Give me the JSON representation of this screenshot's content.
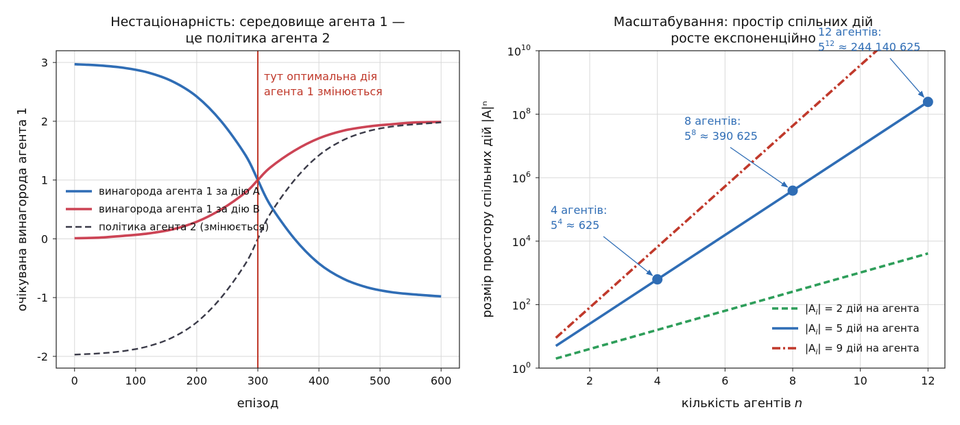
{
  "colors": {
    "blue": "#2f6db5",
    "red": "#cc4455",
    "dark": "#3a3a48",
    "vline": "#c0392b",
    "green": "#2e9e5a",
    "dred": "#c0392b",
    "grid": "#d9d9d9"
  },
  "chart_data": [
    {
      "type": "line",
      "title": [
        "Нестаціонарність: середовище агента 1 —",
        "це політика агента 2"
      ],
      "xlabel": "епізод",
      "ylabel": "очікувана винагорода агента 1",
      "xlim": [
        -30,
        630
      ],
      "ylim": [
        -2.2,
        3.2
      ],
      "xticks": [
        0,
        100,
        200,
        300,
        400,
        500,
        600
      ],
      "xtick_labels": [
        "0",
        "100",
        "200",
        "300",
        "400",
        "500",
        "600"
      ],
      "yticks": [
        -2,
        -1,
        0,
        1,
        2,
        3
      ],
      "ytick_labels": [
        "-2",
        "-1",
        "0",
        "1",
        "2",
        "3"
      ],
      "grid": true,
      "legend_position": "center-left",
      "series": [
        {
          "name": "винагорода агента 1 за дію A",
          "color": "blue",
          "style": "solid",
          "x": [
            0,
            40,
            80,
            120,
            160,
            200,
            240,
            280,
            300,
            320,
            360,
            400,
            440,
            480,
            520,
            560,
            600
          ],
          "y": [
            2.97,
            2.95,
            2.91,
            2.83,
            2.68,
            2.42,
            2.0,
            1.42,
            1.0,
            0.58,
            0.0,
            -0.42,
            -0.68,
            -0.83,
            -0.91,
            -0.95,
            -0.98
          ]
        },
        {
          "name": "винагорода агента 1 за дію B",
          "color": "red",
          "style": "solid",
          "x": [
            0,
            40,
            80,
            120,
            160,
            200,
            240,
            280,
            300,
            320,
            360,
            400,
            440,
            480,
            520,
            560,
            600
          ],
          "y": [
            0.01,
            0.02,
            0.05,
            0.09,
            0.16,
            0.29,
            0.5,
            0.79,
            1.0,
            1.21,
            1.5,
            1.71,
            1.84,
            1.91,
            1.95,
            1.98,
            1.99
          ]
        },
        {
          "name": "політика агента 2 (змінюється)",
          "color": "dark",
          "style": "dashed",
          "x": [
            0,
            40,
            80,
            120,
            160,
            200,
            240,
            280,
            300,
            320,
            360,
            400,
            440,
            480,
            520,
            560,
            600
          ],
          "y": [
            -1.97,
            -1.95,
            -1.91,
            -1.83,
            -1.68,
            -1.42,
            -1.0,
            -0.42,
            0.0,
            0.42,
            1.0,
            1.42,
            1.68,
            1.83,
            1.91,
            1.95,
            1.98
          ]
        }
      ],
      "vline": {
        "x": 300,
        "color": "vline"
      },
      "annotation": {
        "lines": [
          "тут оптимальна дія",
          "агента 1 змінюється"
        ],
        "x": 310,
        "y_top": 2.7,
        "color": "vline"
      }
    },
    {
      "type": "line",
      "title": [
        "Масштабування: простір спільних дій",
        "росте експоненційно"
      ],
      "xlabel": "кількість агентів",
      "xlabel_var": "n",
      "ylabel": "розмір простору спільних дій |A|ⁿ",
      "yscale": "log",
      "xlim": [
        0.5,
        12.5
      ],
      "ylim_exp": [
        0,
        10
      ],
      "xticks": [
        2,
        4,
        6,
        8,
        10,
        12
      ],
      "xtick_labels": [
        "2",
        "4",
        "6",
        "8",
        "10",
        "12"
      ],
      "yticks_exp": [
        0,
        2,
        4,
        6,
        8,
        10
      ],
      "ytick_base": "10",
      "grid": true,
      "legend_position": "bottom-right",
      "series": [
        {
          "name": "|Aᵢ| = 2 дій на агента",
          "name_prefix": "|A",
          "name_sub": "i",
          "name_suffix": "| = 2 дій на агента",
          "color": "green",
          "style": "dashed",
          "base": 2,
          "x": [
            1,
            12
          ]
        },
        {
          "name": "|Aᵢ| = 5 дій на агента",
          "name_prefix": "|A",
          "name_sub": "i",
          "name_suffix": "| = 5 дій на агента",
          "color": "blue",
          "style": "solid",
          "base": 5,
          "x": [
            1,
            12
          ]
        },
        {
          "name": "|Aᵢ| = 9 дій на агента",
          "name_prefix": "|A",
          "name_sub": "i",
          "name_suffix": "| = 9 дій на агента",
          "color": "dred",
          "style": "dashdot",
          "base": 9,
          "x": [
            1,
            12
          ]
        }
      ],
      "points": [
        {
          "x": 4,
          "value": 625,
          "label1": "4 агентів:",
          "base": "5",
          "exp": "4",
          "label2": " ≈  625"
        },
        {
          "x": 8,
          "value": 390625,
          "label1": "8 агентів:",
          "base": "5",
          "exp": "8",
          "label2": " ≈  390 625"
        },
        {
          "x": 12,
          "value": 244140625,
          "label1": "12 агентів:",
          "base": "5",
          "exp": "12",
          "label2": " ≈  244 140 625"
        }
      ]
    }
  ]
}
